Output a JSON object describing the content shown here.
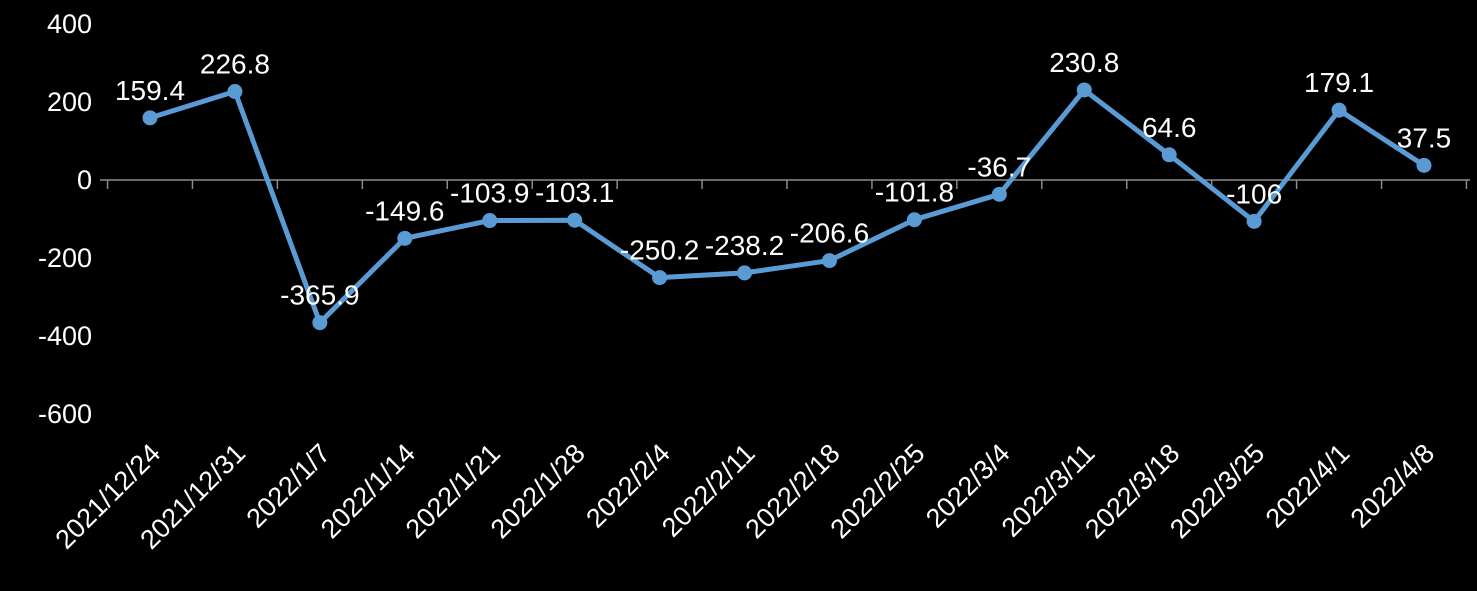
{
  "chart_data": {
    "type": "line",
    "title": "",
    "xlabel": "",
    "ylabel": "",
    "categories": [
      "2021/12/24",
      "2021/12/31",
      "2022/1/7",
      "2022/1/14",
      "2022/1/21",
      "2022/1/28",
      "2022/2/4",
      "2022/2/11",
      "2022/2/18",
      "2022/2/25",
      "2022/3/4",
      "2022/3/11",
      "2022/3/18",
      "2022/3/25",
      "2022/4/1",
      "2022/4/8"
    ],
    "values": [
      159.4,
      226.8,
      -365.9,
      -149.6,
      -103.9,
      -103.1,
      -250.2,
      -238.2,
      -206.6,
      -101.8,
      -36.7,
      230.8,
      64.6,
      -106,
      179.1,
      37.5
    ],
    "data_labels": [
      "159.4",
      "226.8",
      "-365.9",
      "-149.6",
      "-103.9",
      "-103.1",
      "-250.2",
      "-238.2",
      "-206.6",
      "-101.8",
      "-36.7",
      "230.8",
      "64.6",
      "-106",
      "179.1",
      "37.5"
    ],
    "y_ticks": [
      400,
      200,
      0,
      -200,
      -400,
      -600
    ],
    "ylim": [
      -600,
      400
    ],
    "grid": "axis-line-at-zero-only",
    "legend_position": "none",
    "colors": {
      "background": "#000000",
      "line": "#5B9BD5",
      "marker": "#5B9BD5",
      "label_text": "#FFFFFF",
      "axis_text": "#FFFFFF",
      "axis_line": "#8C8C8C"
    }
  }
}
